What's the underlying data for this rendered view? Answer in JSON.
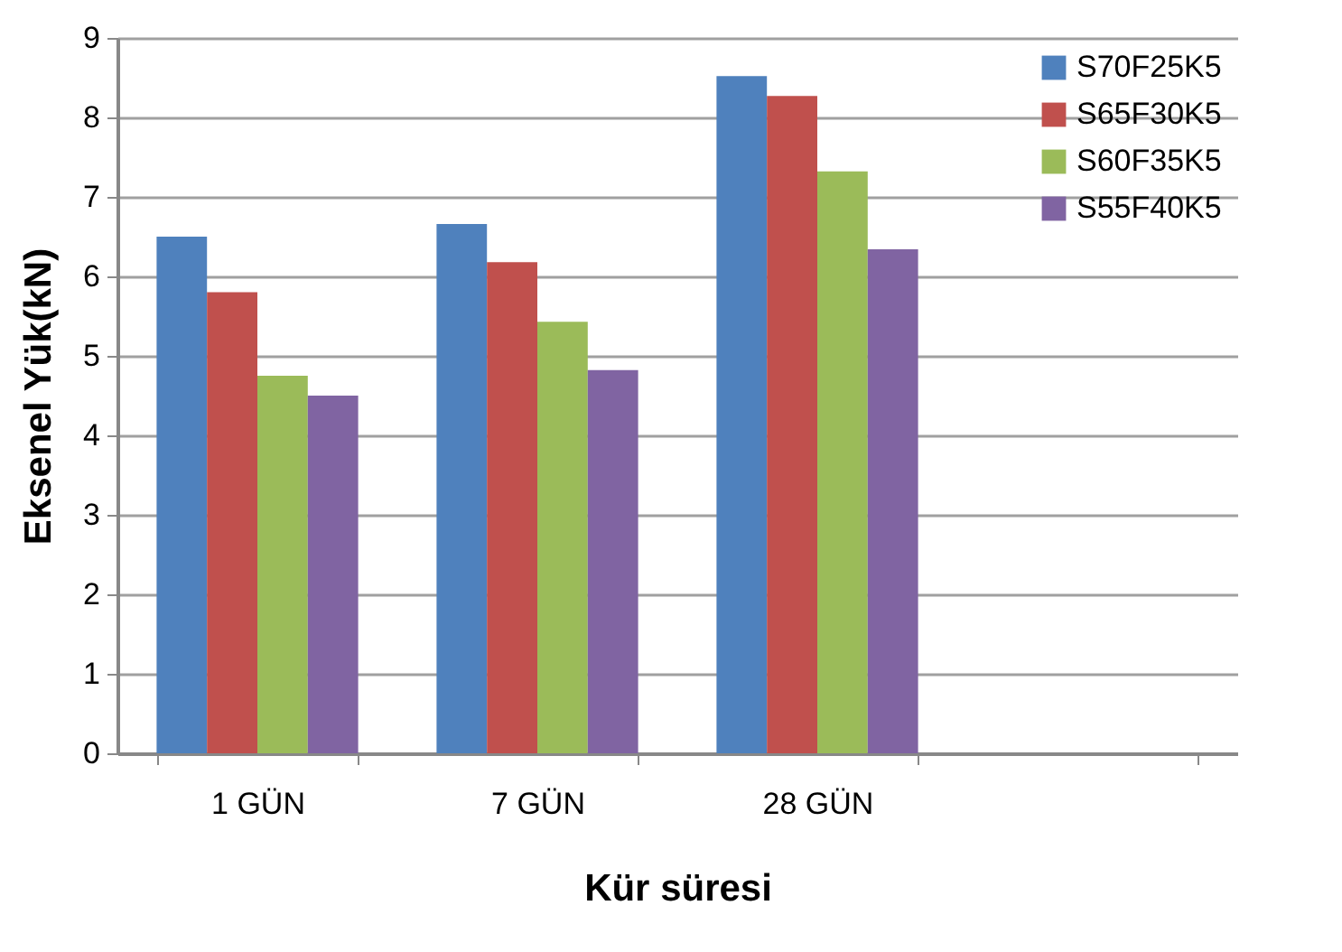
{
  "chart_data": {
    "type": "bar",
    "xlabel": "Kür süresi",
    "ylabel": "Eksenel Yük(kN)",
    "categories": [
      "1 GÜN",
      "7 GÜN",
      "28 GÜN",
      null
    ],
    "series": [
      {
        "name": "S70F25K5",
        "color": "#4f81bd",
        "values": [
          6.5,
          6.66,
          8.52,
          null
        ]
      },
      {
        "name": "S65F30K5",
        "color": "#c0504d",
        "values": [
          5.8,
          6.18,
          8.27,
          null
        ]
      },
      {
        "name": "S60F35K5",
        "color": "#9bbb59",
        "values": [
          4.75,
          5.43,
          7.32,
          null
        ]
      },
      {
        "name": "S55F40K5",
        "color": "#8064a2",
        "values": [
          4.5,
          4.82,
          6.34,
          null
        ]
      }
    ],
    "ylim": [
      0,
      9
    ],
    "yticks": [
      0,
      1,
      2,
      3,
      4,
      5,
      6,
      7,
      8,
      9
    ],
    "grid": "y",
    "legend": "top right"
  }
}
